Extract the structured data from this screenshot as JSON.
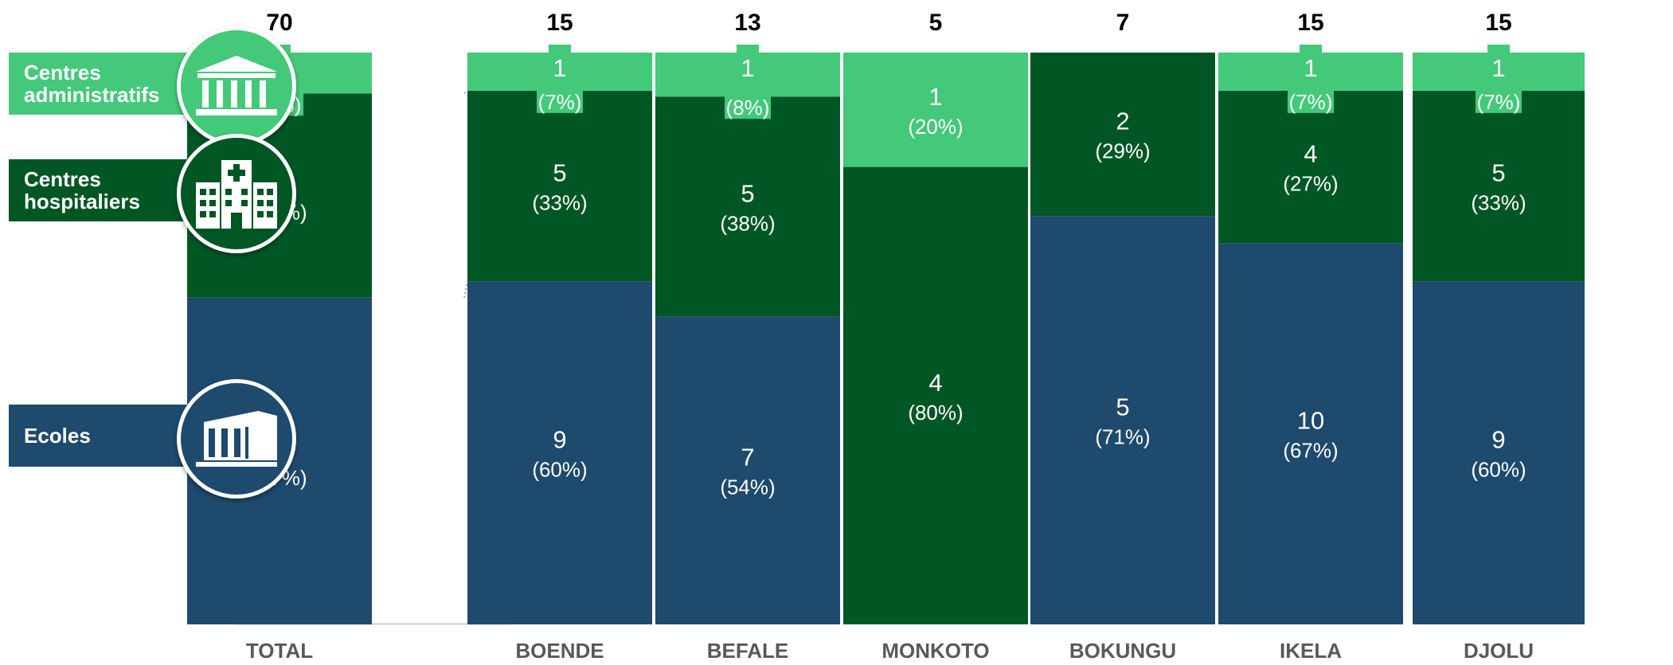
{
  "chart_data": {
    "type": "bar",
    "stacked": true,
    "categories": [
      "TOTAL",
      "BOENDE",
      "BEFALE",
      "MONKOTO",
      "BOKUNGU",
      "IKELA",
      "DJOLU"
    ],
    "totals": [
      "70",
      "15",
      "13",
      "5",
      "7",
      "15",
      "15"
    ],
    "series": [
      {
        "name": "Ecoles",
        "color": "#1e4a6d",
        "values": [
          40,
          9,
          7,
          0,
          5,
          10,
          9
        ],
        "percent_labels": [
          "(57%)",
          "(60%)",
          "(54%)",
          "",
          "(71%)",
          "(67%)",
          "(60%)"
        ]
      },
      {
        "name": "Centres hospitaliers",
        "color": "#005724",
        "values": [
          25,
          5,
          5,
          4,
          2,
          4,
          5
        ],
        "percent_labels": [
          "(36%)",
          "(33%)",
          "(38%)",
          "(80%)",
          "(29%)",
          "(27%)",
          "(33%)"
        ]
      },
      {
        "name": "Centres administratifs",
        "color": "#43c979",
        "values": [
          5,
          1,
          1,
          1,
          0,
          1,
          1
        ],
        "percent_labels": [
          "(7%)",
          "(7%)",
          "(8%)",
          "(20%)",
          "",
          "(7%)",
          "(7%)"
        ]
      }
    ]
  },
  "legend": [
    {
      "label": "Centres\nadministratifs",
      "icon": "government-building-icon",
      "color": "#43c979"
    },
    {
      "label": "Centres\nhospitaliers",
      "icon": "hospital-icon",
      "color": "#005724"
    },
    {
      "label": "Ecoles",
      "icon": "school-building-icon",
      "color": "#1e4a6d"
    }
  ]
}
